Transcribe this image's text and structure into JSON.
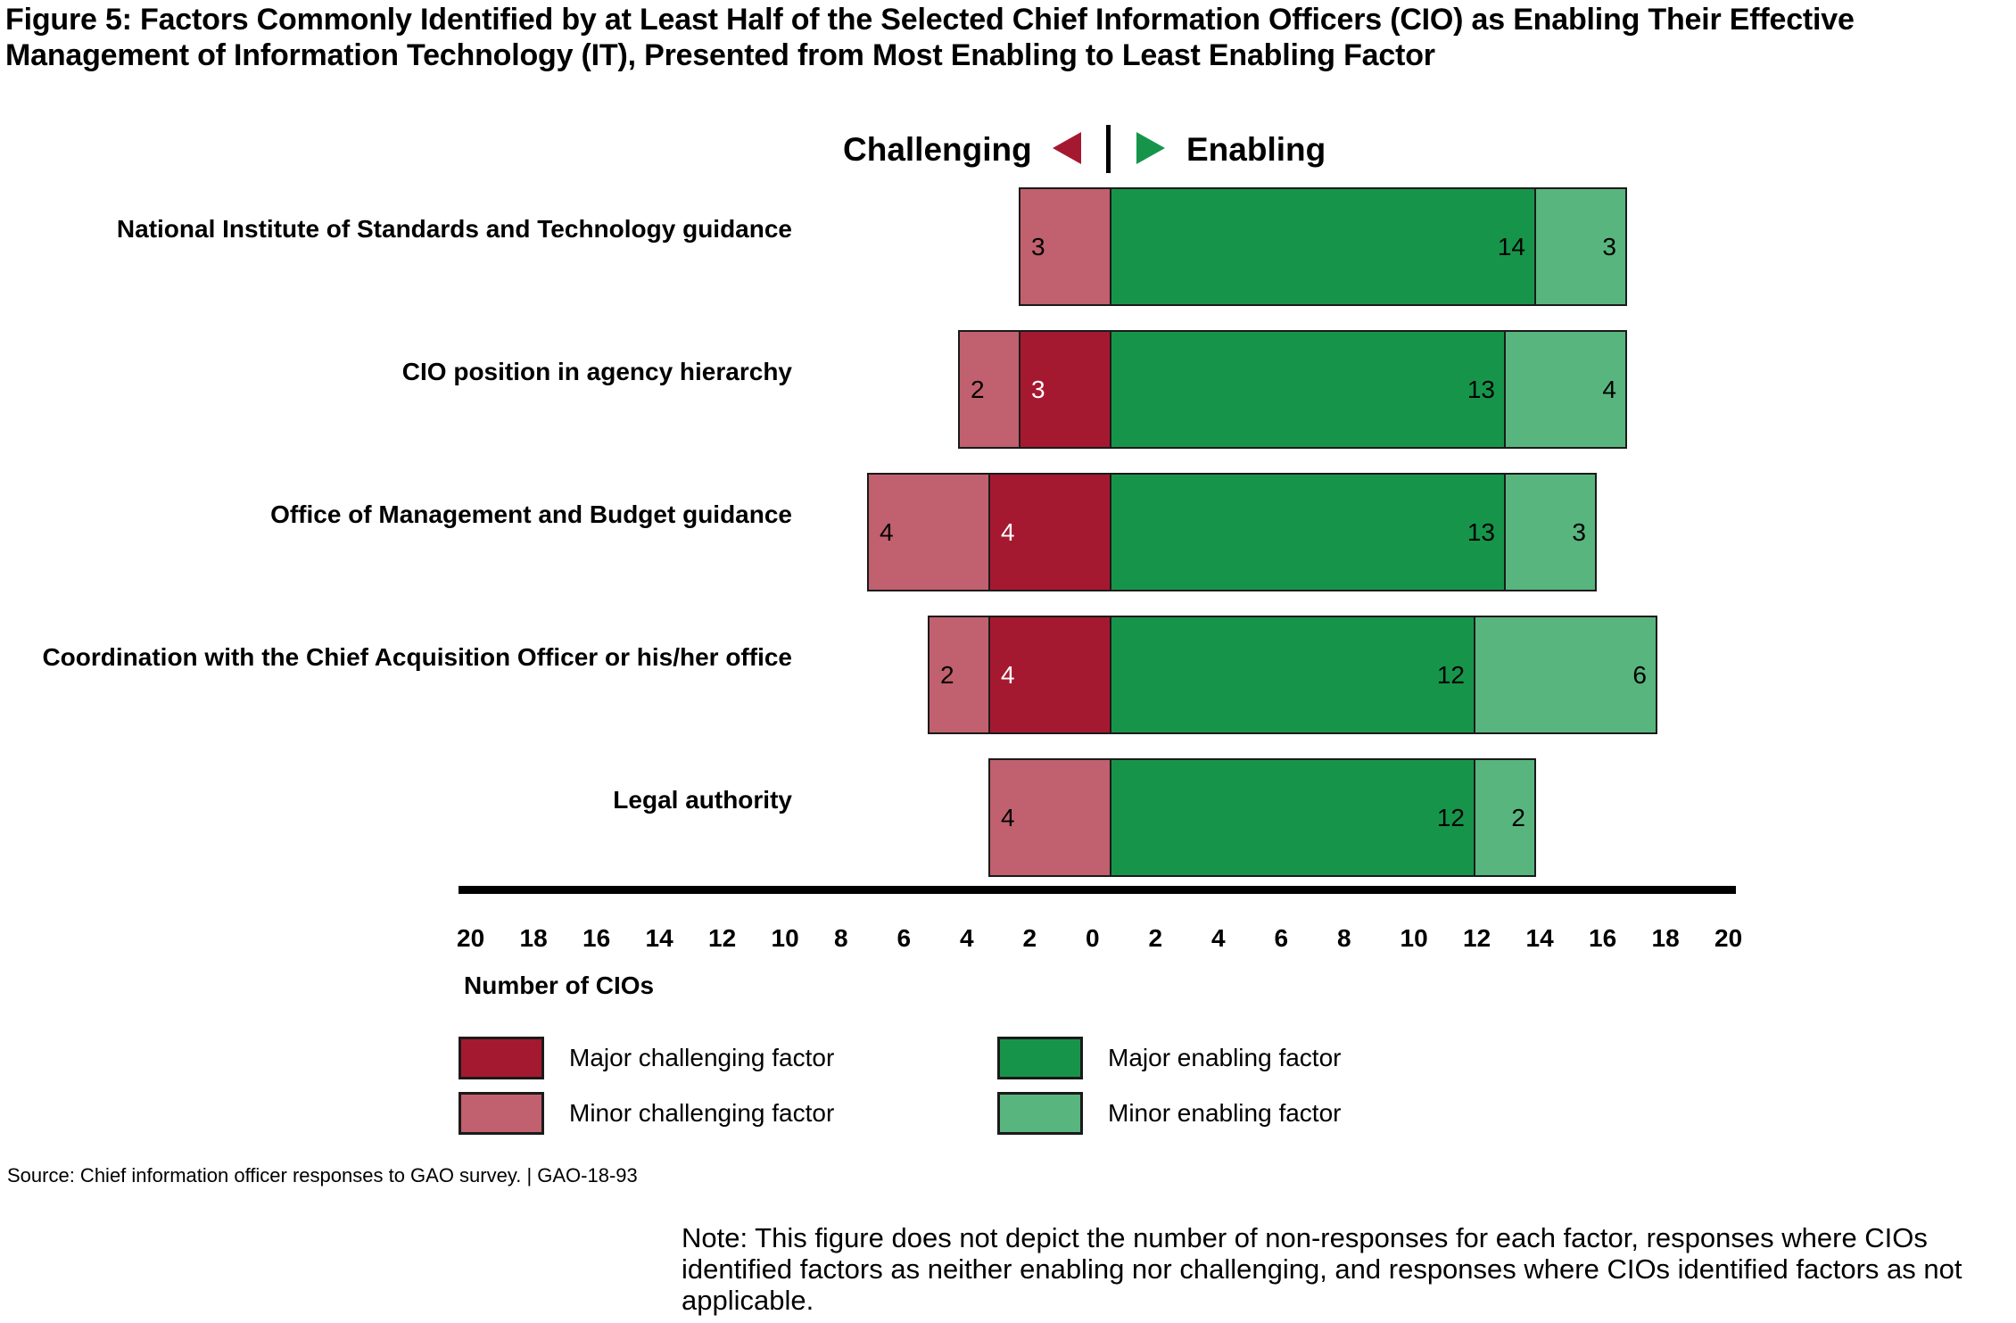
{
  "title": "Figure 5: Factors Commonly Identified by at Least Half of the Selected Chief Information Officers (CIO) as Enabling Their Effective Management of Information Technology (IT), Presented from Most Enabling to Least Enabling Factor",
  "header": {
    "challenging_label": "Challenging",
    "enabling_label": "Enabling"
  },
  "colors": {
    "major_challenging": "#a51930",
    "minor_challenging": "#c1606e",
    "major_enabling": "#16954a",
    "minor_enabling": "#58b57e"
  },
  "chart_data": {
    "type": "bar",
    "orientation": "horizontal",
    "stacked": "diverging",
    "title": "Figure 5: Factors Commonly Identified by at Least Half of the Selected Chief Information Officers (CIO) as Enabling Their Effective Management of Information Technology (IT), Presented from Most Enabling to Least Enabling Factor",
    "xlabel": "Number of CIOs",
    "ylabel": "",
    "xlim": [
      -20,
      20
    ],
    "x_tick_labels": [
      "20",
      "18",
      "16",
      "14",
      "12",
      "10",
      "8",
      "6",
      "4",
      "2",
      "0",
      "2",
      "4",
      "6",
      "8",
      "10",
      "12",
      "14",
      "16",
      "18",
      "20"
    ],
    "categories": [
      "National Institute of Standards and Technology guidance",
      "CIO position in agency hierarchy",
      "Office of Management and Budget guidance",
      "Coordination with the Chief Acquisition Officer or his/her office",
      "Legal authority"
    ],
    "series": [
      {
        "name": "Minor challenging factor",
        "side": "challenging",
        "values": [
          3,
          2,
          4,
          2,
          4
        ]
      },
      {
        "name": "Major challenging factor",
        "side": "challenging",
        "values": [
          0,
          3,
          4,
          4,
          0
        ]
      },
      {
        "name": "Major enabling factor",
        "side": "enabling",
        "values": [
          14,
          13,
          13,
          12,
          12
        ]
      },
      {
        "name": "Minor enabling factor",
        "side": "enabling",
        "values": [
          3,
          4,
          3,
          6,
          2
        ]
      }
    ],
    "legend": {
      "position": "bottom",
      "entries": [
        "Major challenging factor",
        "Minor challenging factor",
        "Major enabling factor",
        "Minor enabling factor"
      ]
    },
    "grid": false
  },
  "legend": [
    {
      "label": "Major challenging factor",
      "color_key": "major_challenging"
    },
    {
      "label": "Minor challenging factor",
      "color_key": "minor_challenging"
    },
    {
      "label": "Major enabling factor",
      "color_key": "major_enabling"
    },
    {
      "label": "Minor enabling factor",
      "color_key": "minor_enabling"
    }
  ],
  "source": "Source: Chief information officer responses to GAO survey.  |  GAO-18-93",
  "note": "Note: This figure does not depict the number of non-responses for each factor, responses where CIOs identified factors as neither enabling nor challenging, and responses where CIOs identified factors as not applicable."
}
